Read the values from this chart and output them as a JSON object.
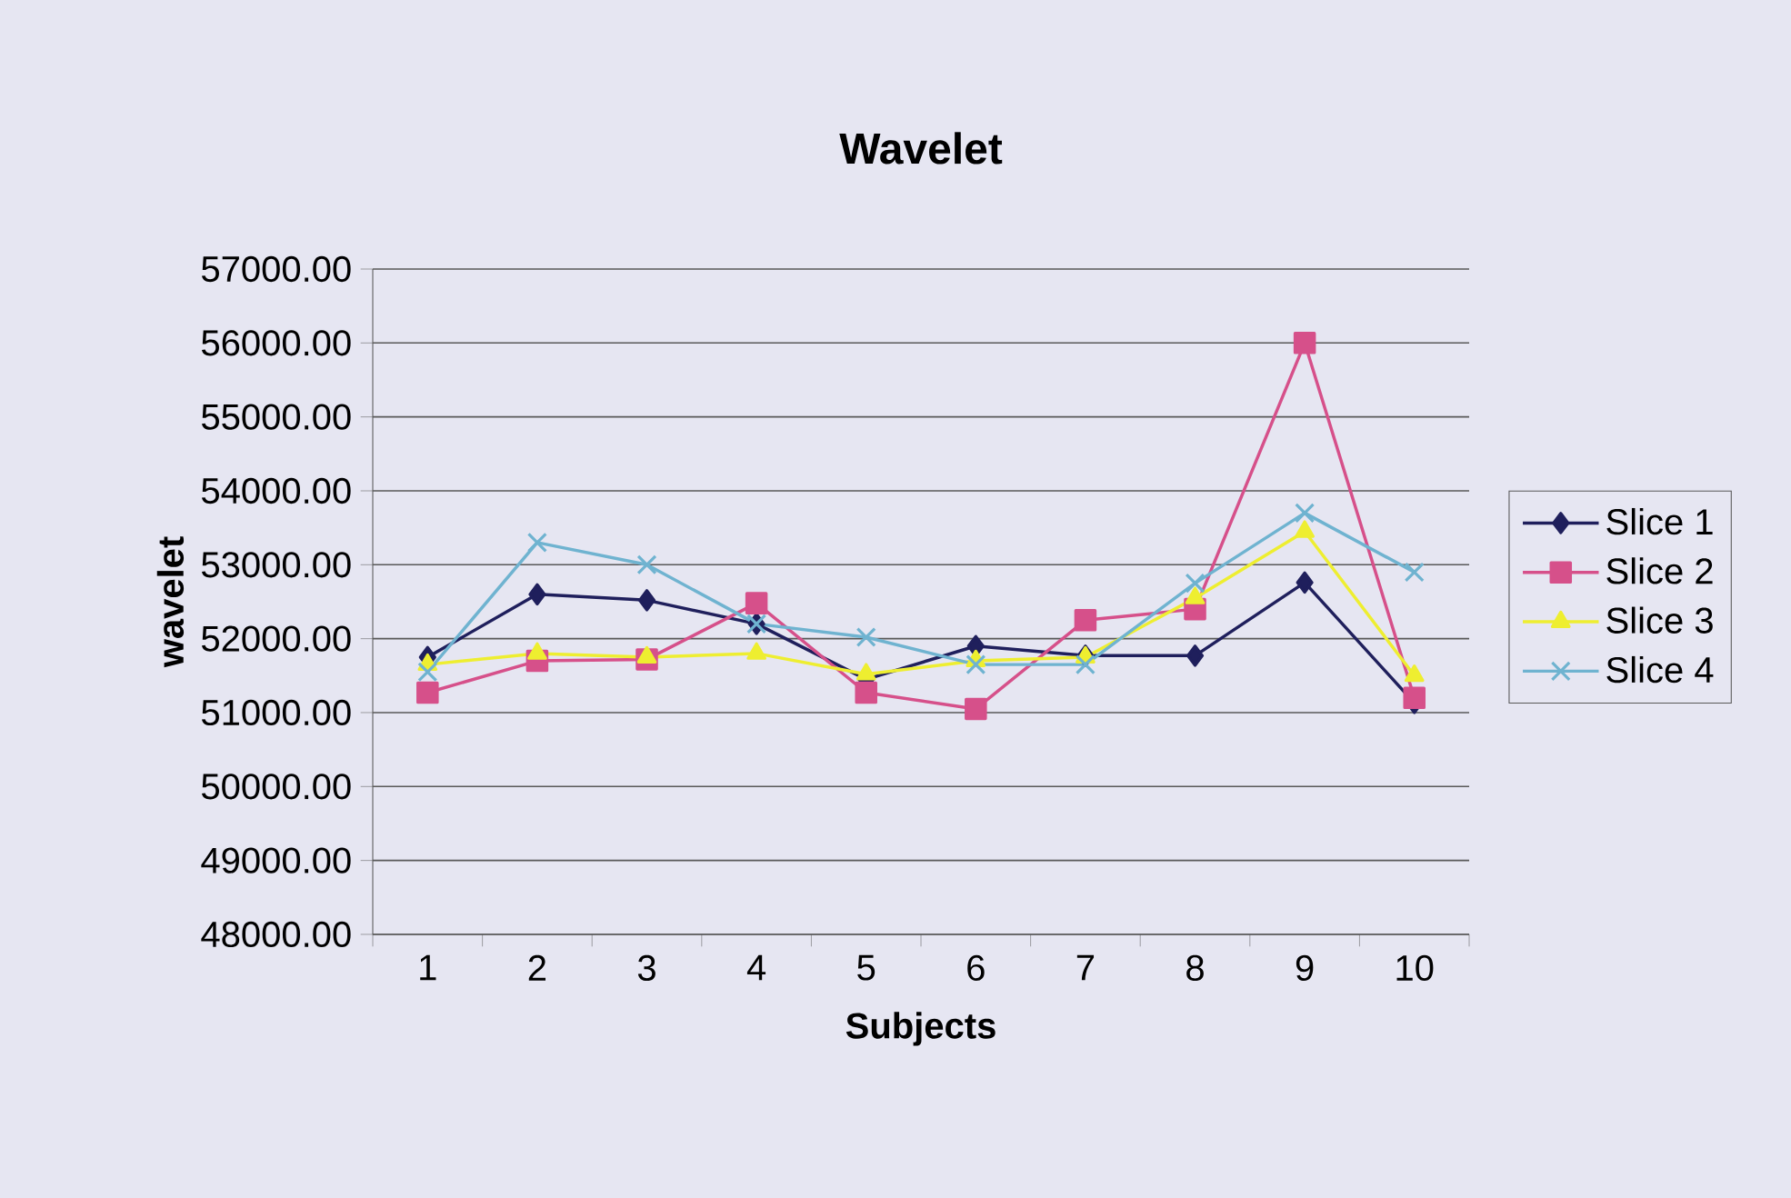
{
  "chart_data": {
    "type": "line",
    "title": "Wavelet",
    "xlabel": "Subjects",
    "ylabel": "wavelet",
    "categories": [
      "1",
      "2",
      "3",
      "4",
      "5",
      "6",
      "7",
      "8",
      "9",
      "10"
    ],
    "series": [
      {
        "name": "Slice 1",
        "color": "#1f1f5c",
        "marker": "diamond",
        "values": [
          51750,
          52600,
          52520,
          52200,
          51450,
          51900,
          51770,
          51770,
          52760,
          51130
        ]
      },
      {
        "name": "Slice 2",
        "color": "#d6508a",
        "marker": "square",
        "values": [
          51270,
          51700,
          51720,
          52480,
          51270,
          51050,
          52250,
          52400,
          56000,
          51200
        ]
      },
      {
        "name": "Slice 3",
        "color": "#eeee30",
        "marker": "triangle",
        "values": [
          51650,
          51800,
          51750,
          51800,
          51520,
          51700,
          51750,
          52550,
          53450,
          51500
        ]
      },
      {
        "name": "Slice 4",
        "color": "#6fb3d0",
        "marker": "cross",
        "values": [
          51550,
          53300,
          53000,
          52200,
          52020,
          51650,
          51650,
          52750,
          53700,
          52900
        ]
      }
    ],
    "ylim": [
      48000,
      57000
    ],
    "yticks": [
      {
        "value": 48000,
        "label": "48000.00"
      },
      {
        "value": 49000,
        "label": "49000.00"
      },
      {
        "value": 50000,
        "label": "50000.00"
      },
      {
        "value": 51000,
        "label": "51000.00"
      },
      {
        "value": 52000,
        "label": "52000.00"
      },
      {
        "value": 53000,
        "label": "53000.00"
      },
      {
        "value": 54000,
        "label": "54000.00"
      },
      {
        "value": 55000,
        "label": "55000.00"
      },
      {
        "value": 56000,
        "label": "56000.00"
      },
      {
        "value": 57000,
        "label": "57000.00"
      }
    ],
    "grid": "y",
    "legend": "right",
    "line_style": "solid"
  }
}
